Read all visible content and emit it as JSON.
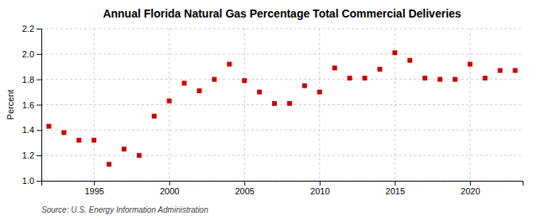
{
  "chart_data": {
    "type": "scatter",
    "title": "Annual Florida Natural Gas Percentage Total Commercial Deliveries",
    "ylabel": "Percent",
    "source": "Source: U.S. Energy Information Administration",
    "x": [
      1992,
      1993,
      1994,
      1995,
      1996,
      1997,
      1998,
      1999,
      2000,
      2001,
      2002,
      2003,
      2004,
      2005,
      2006,
      2007,
      2008,
      2009,
      2010,
      2011,
      2012,
      2013,
      2014,
      2015,
      2016,
      2017,
      2018,
      2019,
      2020,
      2021,
      2022,
      2023
    ],
    "values": [
      1.43,
      1.38,
      1.32,
      1.32,
      1.13,
      1.25,
      1.2,
      1.51,
      1.63,
      1.77,
      1.71,
      1.8,
      1.92,
      1.79,
      1.7,
      1.61,
      1.61,
      1.75,
      1.7,
      1.89,
      1.81,
      1.81,
      1.88,
      2.01,
      1.95,
      1.81,
      1.8,
      1.8,
      1.92,
      1.81,
      1.87,
      1.87
    ],
    "color": "#cc0000",
    "marker": "square",
    "xlim": [
      1991.5,
      2023.5
    ],
    "xticks": [
      1995,
      2000,
      2005,
      2010,
      2015,
      2020
    ],
    "ylim": [
      1.0,
      2.2
    ],
    "yticks": [
      {
        "value": 1.0,
        "label": "1.0"
      },
      1.2,
      1.4,
      1.6,
      1.8,
      {
        "value": 2.0,
        "label": "2.0"
      },
      2.2
    ],
    "grid": true
  }
}
